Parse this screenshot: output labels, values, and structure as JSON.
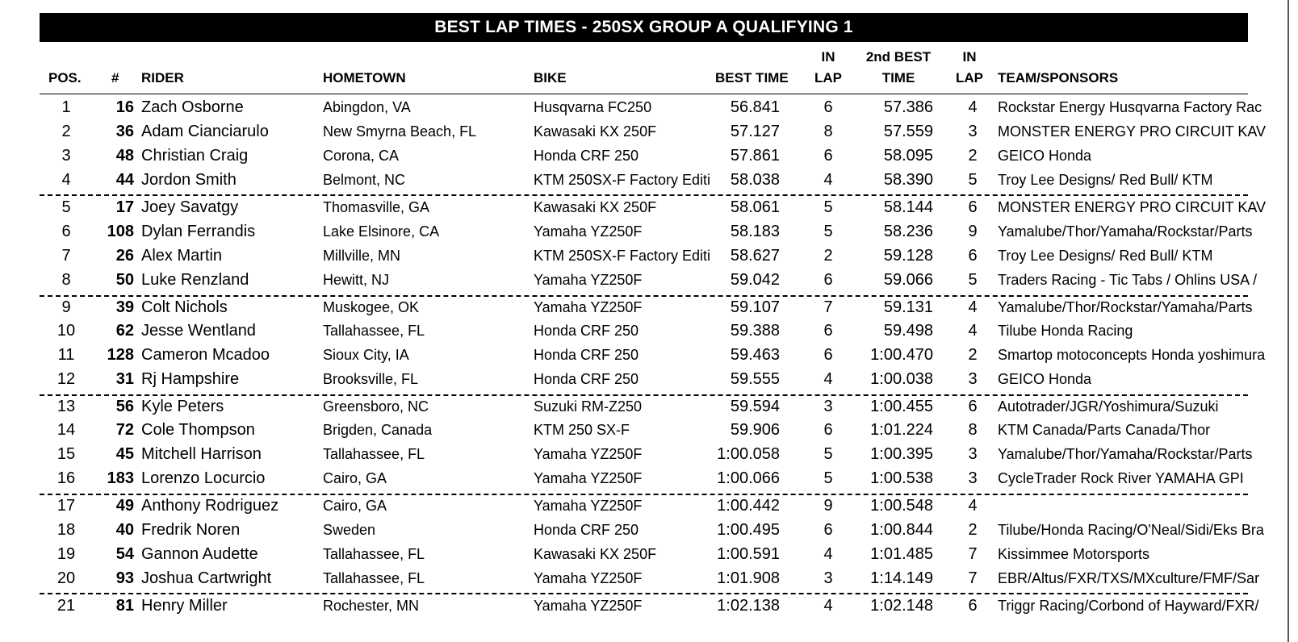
{
  "title": "BEST LAP TIMES - 250SX GROUP A QUALIFYING 1",
  "headers": {
    "pos": "POS.",
    "num": "#",
    "rider": "RIDER",
    "hometown": "HOMETOWN",
    "bike": "BIKE",
    "best_time": "BEST TIME",
    "in_lap_1_top": "IN",
    "in_lap_1_bottom": "LAP",
    "second_best_top": "2nd BEST",
    "second_best_bottom": "TIME",
    "in_lap_2_top": "IN",
    "in_lap_2_bottom": "LAP",
    "team": "TEAM/SPONSORS"
  },
  "rows": [
    {
      "pos": "1",
      "num": "16",
      "rider": "Zach Osborne",
      "hometown": "Abingdon, VA",
      "bike": "Husqvarna FC250",
      "best": "56.841",
      "lap": "6",
      "best2": "57.386",
      "lap2": "4",
      "team": "Rockstar Energy Husqvarna Factory Rac"
    },
    {
      "pos": "2",
      "num": "36",
      "rider": "Adam Cianciarulo",
      "hometown": "New Smyrna Beach, FL",
      "bike": "Kawasaki KX 250F",
      "best": "57.127",
      "lap": "8",
      "best2": "57.559",
      "lap2": "3",
      "team": "MONSTER ENERGY PRO CIRCUIT KAV"
    },
    {
      "pos": "3",
      "num": "48",
      "rider": "Christian Craig",
      "hometown": "Corona, CA",
      "bike": "Honda CRF 250",
      "best": "57.861",
      "lap": "6",
      "best2": "58.095",
      "lap2": "2",
      "team": "GEICO Honda"
    },
    {
      "pos": "4",
      "num": "44",
      "rider": "Jordon Smith",
      "hometown": "Belmont, NC",
      "bike": "KTM 250SX-F Factory Editi",
      "best": "58.038",
      "lap": "4",
      "best2": "58.390",
      "lap2": "5",
      "team": "Troy Lee Designs/ Red Bull/ KTM"
    },
    {
      "pos": "5",
      "num": "17",
      "rider": "Joey Savatgy",
      "hometown": "Thomasville, GA",
      "bike": "Kawasaki KX 250F",
      "best": "58.061",
      "lap": "5",
      "best2": "58.144",
      "lap2": "6",
      "team": "MONSTER ENERGY PRO CIRCUIT KAV"
    },
    {
      "pos": "6",
      "num": "108",
      "rider": "Dylan Ferrandis",
      "hometown": "Lake Elsinore, CA",
      "bike": "Yamaha YZ250F",
      "best": "58.183",
      "lap": "5",
      "best2": "58.236",
      "lap2": "9",
      "team": "Yamalube/Thor/Yamaha/Rockstar/Parts"
    },
    {
      "pos": "7",
      "num": "26",
      "rider": "Alex Martin",
      "hometown": "Millville, MN",
      "bike": "KTM 250SX-F Factory Editi",
      "best": "58.627",
      "lap": "2",
      "best2": "59.128",
      "lap2": "6",
      "team": "Troy Lee Designs/ Red Bull/ KTM"
    },
    {
      "pos": "8",
      "num": "50",
      "rider": "Luke Renzland",
      "hometown": "Hewitt, NJ",
      "bike": "Yamaha YZ250F",
      "best": "59.042",
      "lap": "6",
      "best2": "59.066",
      "lap2": "5",
      "team": "Traders Racing - Tic Tabs / Ohlins USA /"
    },
    {
      "pos": "9",
      "num": "39",
      "rider": "Colt Nichols",
      "hometown": "Muskogee, OK",
      "bike": "Yamaha YZ250F",
      "best": "59.107",
      "lap": "7",
      "best2": "59.131",
      "lap2": "4",
      "team": "Yamalube/Thor/Rockstar/Yamaha/Parts"
    },
    {
      "pos": "10",
      "num": "62",
      "rider": "Jesse Wentland",
      "hometown": "Tallahassee, FL",
      "bike": "Honda CRF 250",
      "best": "59.388",
      "lap": "6",
      "best2": "59.498",
      "lap2": "4",
      "team": "Tilube Honda Racing"
    },
    {
      "pos": "11",
      "num": "128",
      "rider": "Cameron Mcadoo",
      "hometown": "Sioux City, IA",
      "bike": "Honda CRF 250",
      "best": "59.463",
      "lap": "6",
      "best2": "1:00.470",
      "lap2": "2",
      "team": "Smartop motoconcepts Honda yoshimura"
    },
    {
      "pos": "12",
      "num": "31",
      "rider": "Rj Hampshire",
      "hometown": "Brooksville, FL",
      "bike": "Honda CRF 250",
      "best": "59.555",
      "lap": "4",
      "best2": "1:00.038",
      "lap2": "3",
      "team": "GEICO Honda"
    },
    {
      "pos": "13",
      "num": "56",
      "rider": "Kyle Peters",
      "hometown": "Greensboro, NC",
      "bike": "Suzuki RM-Z250",
      "best": "59.594",
      "lap": "3",
      "best2": "1:00.455",
      "lap2": "6",
      "team": "Autotrader/JGR/Yoshimura/Suzuki"
    },
    {
      "pos": "14",
      "num": "72",
      "rider": "Cole Thompson",
      "hometown": "Brigden, Canada",
      "bike": "KTM 250 SX-F",
      "best": "59.906",
      "lap": "6",
      "best2": "1:01.224",
      "lap2": "8",
      "team": "KTM Canada/Parts Canada/Thor"
    },
    {
      "pos": "15",
      "num": "45",
      "rider": "Mitchell Harrison",
      "hometown": "Tallahassee, FL",
      "bike": "Yamaha YZ250F",
      "best": "1:00.058",
      "lap": "5",
      "best2": "1:00.395",
      "lap2": "3",
      "team": "Yamalube/Thor/Yamaha/Rockstar/Parts"
    },
    {
      "pos": "16",
      "num": "183",
      "rider": "Lorenzo Locurcio",
      "hometown": "Cairo, GA",
      "bike": "Yamaha YZ250F",
      "best": "1:00.066",
      "lap": "5",
      "best2": "1:00.538",
      "lap2": "3",
      "team": "CycleTrader Rock River YAMAHA GPI"
    },
    {
      "pos": "17",
      "num": "49",
      "rider": "Anthony Rodriguez",
      "hometown": "Cairo, GA",
      "bike": "Yamaha YZ250F",
      "best": "1:00.442",
      "lap": "9",
      "best2": "1:00.548",
      "lap2": "4",
      "team": ""
    },
    {
      "pos": "18",
      "num": "40",
      "rider": "Fredrik Noren",
      "hometown": "Sweden",
      "bike": "Honda CRF 250",
      "best": "1:00.495",
      "lap": "6",
      "best2": "1:00.844",
      "lap2": "2",
      "team": "Tilube/Honda Racing/O'Neal/Sidi/Eks Bra"
    },
    {
      "pos": "19",
      "num": "54",
      "rider": "Gannon Audette",
      "hometown": "Tallahassee, FL",
      "bike": "Kawasaki KX 250F",
      "best": "1:00.591",
      "lap": "4",
      "best2": "1:01.485",
      "lap2": "7",
      "team": "Kissimmee Motorsports"
    },
    {
      "pos": "20",
      "num": "93",
      "rider": "Joshua Cartwright",
      "hometown": "Tallahassee, FL",
      "bike": "Yamaha YZ250F",
      "best": "1:01.908",
      "lap": "3",
      "best2": "1:14.149",
      "lap2": "7",
      "team": "EBR/Altus/FXR/TXS/MXculture/FMF/Sar"
    },
    {
      "pos": "21",
      "num": "81",
      "rider": "Henry Miller",
      "hometown": "Rochester, MN",
      "bike": "Yamaha YZ250F",
      "best": "1:02.138",
      "lap": "4",
      "best2": "1:02.148",
      "lap2": "6",
      "team": "Triggr Racing/Corbond of Hayward/FXR/"
    }
  ]
}
